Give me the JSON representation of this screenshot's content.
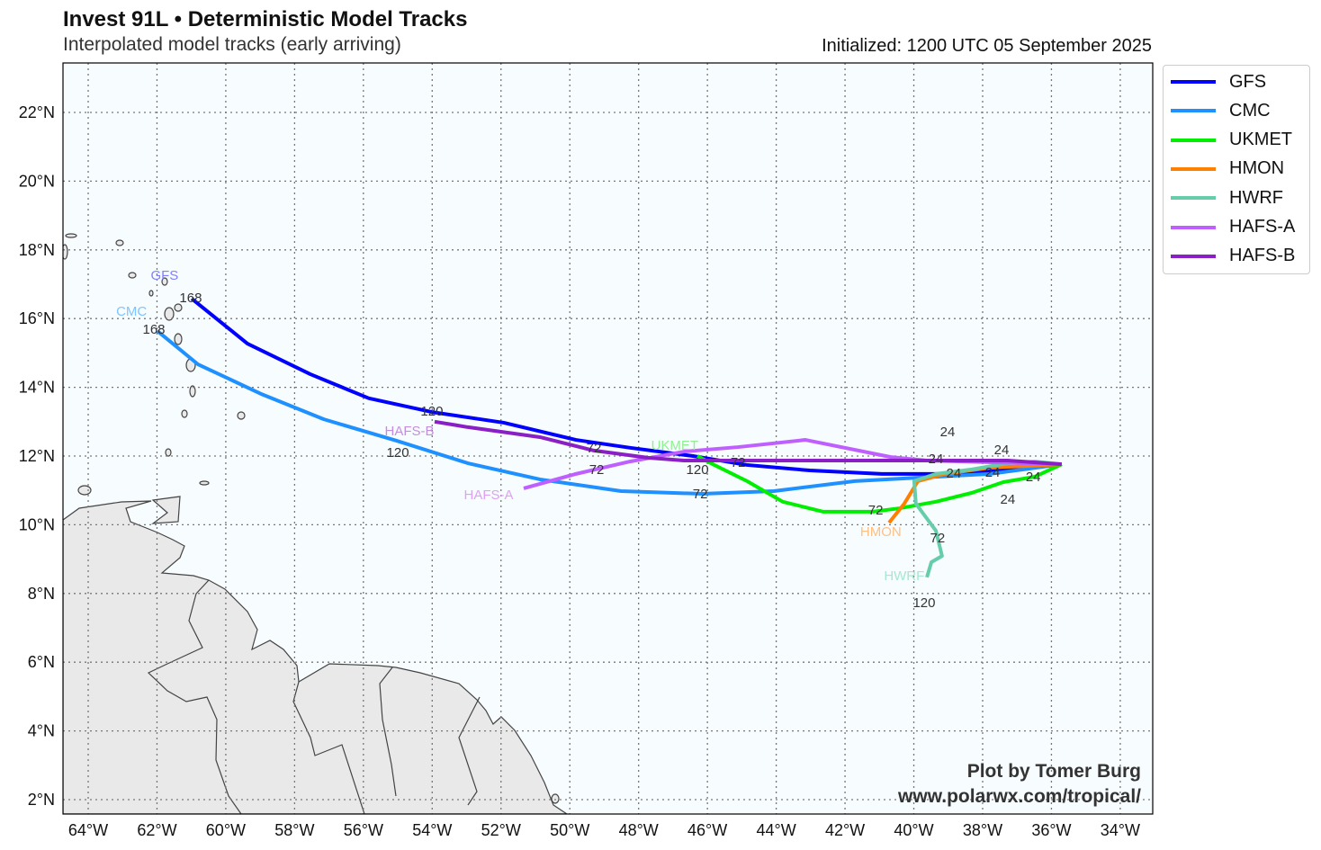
{
  "header": {
    "title": "Invest 91L • Deterministic Model Tracks",
    "subtitle": "Interpolated model tracks (early arriving)",
    "initialized": "Initialized: 1200 UTC 05 September 2025"
  },
  "credit": {
    "line1": "Plot by Tomer Burg",
    "line2": "www.polarwx.com/tropical/"
  },
  "chart_data": {
    "type": "line",
    "title": "Invest 91L • Deterministic Model Tracks",
    "xlim": [
      -64.73,
      -33.05
    ],
    "ylim": [
      1.58,
      23.44
    ],
    "grid": true,
    "legend_position": "outside-top-right",
    "x_ticks": [
      {
        "v": -64,
        "t": "64°W"
      },
      {
        "v": -62,
        "t": "62°W"
      },
      {
        "v": -60,
        "t": "60°W"
      },
      {
        "v": -58,
        "t": "58°W"
      },
      {
        "v": -56,
        "t": "56°W"
      },
      {
        "v": -54,
        "t": "54°W"
      },
      {
        "v": -52,
        "t": "52°W"
      },
      {
        "v": -50,
        "t": "50°W"
      },
      {
        "v": -48,
        "t": "48°W"
      },
      {
        "v": -46,
        "t": "46°W"
      },
      {
        "v": -44,
        "t": "44°W"
      },
      {
        "v": -42,
        "t": "42°W"
      },
      {
        "v": -40,
        "t": "40°W"
      },
      {
        "v": -38,
        "t": "38°W"
      },
      {
        "v": -36,
        "t": "36°W"
      },
      {
        "v": -34,
        "t": "34°W"
      }
    ],
    "y_ticks": [
      {
        "v": 2,
        "t": "2°N"
      },
      {
        "v": 4,
        "t": "4°N"
      },
      {
        "v": 6,
        "t": "6°N"
      },
      {
        "v": 8,
        "t": "8°N"
      },
      {
        "v": 10,
        "t": "10°N"
      },
      {
        "v": 12,
        "t": "12°N"
      },
      {
        "v": 14,
        "t": "14°N"
      },
      {
        "v": 16,
        "t": "16°N"
      },
      {
        "v": 18,
        "t": "18°N"
      },
      {
        "v": 20,
        "t": "20°N"
      },
      {
        "v": 22,
        "t": "22°N"
      }
    ],
    "series": [
      {
        "name": "GFS",
        "color": "#0000ff",
        "points": [
          [
            -60.99,
            16.58
          ],
          [
            -59.37,
            15.27
          ],
          [
            -57.54,
            14.38
          ],
          [
            -55.84,
            13.68
          ],
          [
            -54.01,
            13.28
          ],
          [
            -51.92,
            12.97
          ],
          [
            -49.82,
            12.47
          ],
          [
            -48.25,
            12.24
          ],
          [
            -46.42,
            12.0
          ],
          [
            -44.85,
            11.74
          ],
          [
            -43.02,
            11.58
          ],
          [
            -40.93,
            11.48
          ],
          [
            -38.84,
            11.48
          ],
          [
            -35.7,
            11.76
          ]
        ]
      },
      {
        "name": "CMC",
        "color": "#1e90ff",
        "points": [
          [
            -61.99,
            15.64
          ],
          [
            -60.81,
            14.67
          ],
          [
            -58.98,
            13.81
          ],
          [
            -57.15,
            13.07
          ],
          [
            -55.05,
            12.45
          ],
          [
            -52.96,
            11.79
          ],
          [
            -50.87,
            11.32
          ],
          [
            -48.51,
            10.98
          ],
          [
            -46.16,
            10.9
          ],
          [
            -44.07,
            10.98
          ],
          [
            -41.71,
            11.27
          ],
          [
            -39.88,
            11.37
          ],
          [
            -37.79,
            11.48
          ],
          [
            -35.7,
            11.76
          ]
        ]
      },
      {
        "name": "UKMET",
        "color": "#00ee00",
        "points": [
          [
            -46.29,
            12.0
          ],
          [
            -45.9,
            11.79
          ],
          [
            -44.85,
            11.27
          ],
          [
            -43.81,
            10.67
          ],
          [
            -42.63,
            10.38
          ],
          [
            -41.19,
            10.38
          ],
          [
            -40.41,
            10.48
          ],
          [
            -39.36,
            10.67
          ],
          [
            -38.31,
            10.93
          ],
          [
            -37.4,
            11.24
          ],
          [
            -36.48,
            11.4
          ],
          [
            -35.7,
            11.76
          ]
        ]
      },
      {
        "name": "HMON",
        "color": "#ff8000",
        "points": [
          [
            -40.72,
            10.06
          ],
          [
            -40.28,
            10.61
          ],
          [
            -39.88,
            11.27
          ],
          [
            -39.1,
            11.48
          ],
          [
            -37.79,
            11.66
          ],
          [
            -35.7,
            11.76
          ]
        ]
      },
      {
        "name": "HWRF",
        "color": "#66cdaa",
        "points": [
          [
            -39.62,
            8.47
          ],
          [
            -39.49,
            8.91
          ],
          [
            -39.18,
            9.09
          ],
          [
            -39.36,
            9.83
          ],
          [
            -39.94,
            10.61
          ],
          [
            -39.99,
            11.27
          ],
          [
            -39.36,
            11.48
          ],
          [
            -38.31,
            11.61
          ],
          [
            -37.27,
            11.79
          ],
          [
            -36.48,
            11.84
          ],
          [
            -35.7,
            11.76
          ]
        ]
      },
      {
        "name": "HAFS-A",
        "color": "#bf5fff",
        "points": [
          [
            -51.34,
            11.06
          ],
          [
            -49.82,
            11.48
          ],
          [
            -48.25,
            11.84
          ],
          [
            -46.68,
            12.13
          ],
          [
            -45.11,
            12.26
          ],
          [
            -43.15,
            12.47
          ],
          [
            -40.67,
            11.97
          ],
          [
            -39.62,
            11.87
          ],
          [
            -35.7,
            11.76
          ]
        ]
      },
      {
        "name": "HAFS-B",
        "color": "#8b1fc6",
        "points": [
          [
            -53.93,
            13.0
          ],
          [
            -52.96,
            12.84
          ],
          [
            -50.87,
            12.55
          ],
          [
            -49.3,
            12.16
          ],
          [
            -47.73,
            11.95
          ],
          [
            -46.68,
            11.87
          ],
          [
            -44.85,
            11.87
          ],
          [
            -40.41,
            11.87
          ],
          [
            -37.27,
            11.87
          ],
          [
            -35.7,
            11.76
          ]
        ]
      }
    ],
    "labels": [
      {
        "t": "GFS",
        "lon": -61.78,
        "lat": 17.26,
        "c": "#8080ff"
      },
      {
        "t": "168",
        "lon": -61.02,
        "lat": 16.61,
        "c": "#333"
      },
      {
        "t": "CMC",
        "lon": -62.74,
        "lat": 16.21,
        "c": "#80c4ff"
      },
      {
        "t": "168",
        "lon": -62.09,
        "lat": 15.69,
        "c": "#333"
      },
      {
        "t": "120",
        "lon": -54.01,
        "lat": 13.31,
        "c": "#333"
      },
      {
        "t": "HAFS-B",
        "lon": -54.66,
        "lat": 13.13,
        "c": "#c48ede"
      },
      {
        "t": "120",
        "lon": -55.0,
        "lat": 12.5,
        "c": "#333"
      },
      {
        "t": "HAFS-A",
        "lon": -52.36,
        "lat": 10.87,
        "c": "#e0a0f5"
      },
      {
        "t": "UKMET",
        "lon": -46.95,
        "lat": 12.31,
        "c": "#90f090"
      },
      {
        "t": "120",
        "lon": -46.29,
        "lat": 12.0,
        "c": "#333"
      },
      {
        "t": "72",
        "lon": -49.3,
        "lat": 12.24,
        "c": "#333"
      },
      {
        "t": "72",
        "lon": -49.22,
        "lat": 11.61,
        "c": "#333"
      },
      {
        "t": "72",
        "lon": -45.11,
        "lat": 11.82,
        "c": "#333"
      },
      {
        "t": "72",
        "lon": -46.21,
        "lat": 10.9,
        "c": "#333"
      },
      {
        "t": "72",
        "lon": -41.11,
        "lat": 10.43,
        "c": "#333"
      },
      {
        "t": "HMON",
        "lon": -40.96,
        "lat": 9.8,
        "c": "#ffc080"
      },
      {
        "t": "72",
        "lon": -39.31,
        "lat": 9.62,
        "c": "#333"
      },
      {
        "t": "HWRF",
        "lon": -40.28,
        "lat": 8.52,
        "c": "#a8e6d0"
      },
      {
        "t": "120",
        "lon": -39.7,
        "lat": 8.52,
        "c": "#333"
      },
      {
        "t": "24",
        "lon": -39.36,
        "lat": 11.92,
        "c": "#333"
      },
      {
        "t": "24",
        "lon": -39.02,
        "lat": 11.92,
        "c": "#333"
      },
      {
        "t": "24",
        "lon": -38.84,
        "lat": 11.5,
        "c": "#333"
      },
      {
        "t": "24",
        "lon": -37.71,
        "lat": 11.53,
        "c": "#333"
      },
      {
        "t": "24",
        "lon": -37.45,
        "lat": 11.79,
        "c": "#333"
      },
      {
        "t": "24",
        "lon": -37.27,
        "lat": 11.53,
        "c": "#333"
      },
      {
        "t": "24",
        "lon": -36.53,
        "lat": 11.4,
        "c": "#333"
      }
    ]
  }
}
